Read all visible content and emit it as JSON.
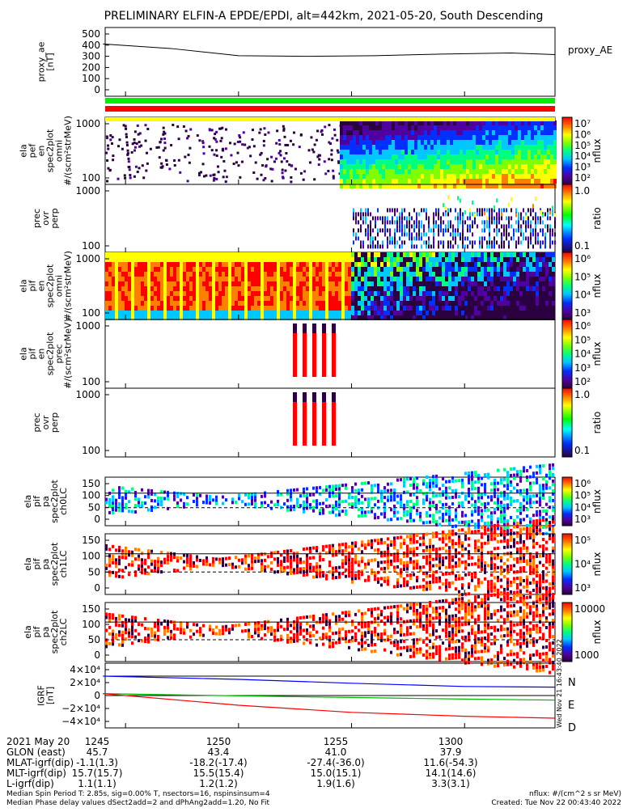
{
  "title": "PRELIMINARY ELFIN-A EPDE/EPDI, alt=442km, 2021-05-20, South Descending",
  "panels": [
    {
      "key": "ae",
      "ylabel_lines": [
        "proxy_ae",
        "[nT]"
      ],
      "yticks": [
        "500",
        "400",
        "300",
        "200",
        "100",
        "0"
      ],
      "right_label": "proxy_AE"
    },
    {
      "key": "epde_omni",
      "ylabel_lines": [
        "ela",
        "pef",
        "en",
        "spec2plot",
        "omni",
        "#/(scm²strMeV)"
      ],
      "yticks": [
        "1000",
        "100"
      ],
      "cb_ticks": [
        "10⁷",
        "10⁶",
        "10⁵",
        "10⁴",
        "10³",
        "10²"
      ],
      "cb_unit": "nflux"
    },
    {
      "key": "epde_ratio",
      "ylabel_lines": [
        "prec",
        "ovr",
        "perp"
      ],
      "yticks": [
        "1000",
        "100"
      ],
      "cb_ticks": [
        "1.0",
        "0.1"
      ],
      "cb_unit": "ratio"
    },
    {
      "key": "epdi_omni",
      "ylabel_lines": [
        "ela",
        "pif",
        "en",
        "spec2plot",
        "omni",
        "#/(scm²strMeV)"
      ],
      "yticks": [
        "1000",
        "100"
      ],
      "cb_ticks": [
        "10⁶",
        "10⁵",
        "10⁴",
        "10³"
      ],
      "cb_unit": "nflux"
    },
    {
      "key": "epdi_prec",
      "ylabel_lines": [
        "ela",
        "pif",
        "en",
        "spec2plot",
        "prec",
        "#/(scm²strMeV)"
      ],
      "yticks": [
        "1000",
        "100"
      ],
      "cb_ticks": [
        "10⁶",
        "10⁵",
        "10⁴",
        "10³",
        "10²"
      ],
      "cb_unit": "nflux"
    },
    {
      "key": "epdi_ratio",
      "ylabel_lines": [
        "prec",
        "ovr",
        "perp"
      ],
      "yticks": [
        "1000",
        "100"
      ],
      "cb_ticks": [
        "1.0",
        "0.1"
      ],
      "cb_unit": "ratio"
    },
    {
      "key": "pa0",
      "ylabel_lines": [
        "ela",
        "pif",
        "pa",
        "spec2plot",
        "ch0LC"
      ],
      "yticks": [
        "150",
        "100",
        "50",
        "0"
      ],
      "cb_ticks": [
        "10⁶",
        "10⁵",
        "10⁴",
        "10³"
      ],
      "cb_unit": "nflux"
    },
    {
      "key": "pa1",
      "ylabel_lines": [
        "ela",
        "pif",
        "pa",
        "spec2plot",
        "ch1LC"
      ],
      "yticks": [
        "150",
        "100",
        "50",
        "0"
      ],
      "cb_ticks": [
        "10⁵",
        "10⁴",
        "10³"
      ],
      "cb_unit": "nflux"
    },
    {
      "key": "pa2",
      "ylabel_lines": [
        "ela",
        "pif",
        "pa",
        "spec2plot",
        "ch2LC"
      ],
      "yticks": [
        "150",
        "100",
        "50",
        "0"
      ],
      "cb_ticks": [
        "10000",
        "1000"
      ],
      "cb_unit": "nflux"
    },
    {
      "key": "igrf",
      "ylabel_lines": [
        "IGRF",
        "[nT]"
      ],
      "yticks": [
        "4×10⁴",
        "2×10⁴",
        "0",
        "−2×10⁴",
        "−4×10⁴"
      ],
      "legend": [
        {
          "label": "N",
          "color": "#0000ff"
        },
        {
          "label": "E",
          "color": "#00bb00"
        },
        {
          "label": "D",
          "color": "#ff0000"
        }
      ]
    }
  ],
  "timestamp_vertical": "Wed Nov 21 16:43:40 2022",
  "footer_rows": [
    {
      "label": "2021 May 20",
      "values": [
        "1245",
        "1250",
        "1255",
        "1300"
      ]
    },
    {
      "label": "GLON (east)",
      "values": [
        "45.7",
        "43.4",
        "41.0",
        "37.9"
      ]
    },
    {
      "label": "MLAT-igrf(dip)",
      "values": [
        "-1.1(1.3)",
        "-18.2(-17.4)",
        "-27.4(-36.0)",
        "11.6(-54.3)"
      ]
    },
    {
      "label": "MLT-igrf(dip)",
      "values": [
        "15.7(15.7)",
        "15.5(15.4)",
        "15.0(15.1)",
        "14.1(14.6)"
      ]
    },
    {
      "label": "L-igrf(dip)",
      "values": [
        "1.1(1.1)",
        "1.2(1.2)",
        "1.9(1.6)",
        "3.3(3.1)"
      ]
    }
  ],
  "footer_notes": [
    "Median Spin Period T: 2.85s, sig=0.00% T, nsectors=16, nspinsinsum=4",
    "Median Phase delay values dSect2add=2 and dPhAng2add=1.20, No Fit"
  ],
  "footer_right": [
    "nflux: #/(cm^2 s sr MeV)",
    "Created: Tue Nov 22 00:43:40 2022"
  ],
  "chart_data": {
    "type": "line",
    "title": "PRELIMINARY ELFIN-A EPDE/EPDI, alt=442km, 2021-05-20, South Descending",
    "x_time_labels": [
      "1245",
      "1250",
      "1255",
      "1300"
    ],
    "proxy_ae": {
      "x": [
        "12:44",
        "12:47",
        "12:50",
        "12:53",
        "12:56",
        "12:59",
        "13:02",
        "13:04"
      ],
      "values": [
        410,
        370,
        305,
        300,
        305,
        320,
        330,
        315
      ],
      "ylim": [
        0,
        500
      ]
    },
    "igrf": {
      "ylim": [
        -40000,
        40000
      ],
      "series": [
        {
          "name": "N",
          "x": [
            "12:44",
            "12:50",
            "12:55",
            "13:00",
            "13:04"
          ],
          "values": [
            30000,
            25000,
            19000,
            14000,
            13000
          ]
        },
        {
          "name": "E",
          "x": [
            "12:44",
            "12:50",
            "12:55",
            "13:00",
            "13:04"
          ],
          "values": [
            3000,
            -500,
            -3000,
            -5500,
            -7000
          ]
        },
        {
          "name": "D",
          "x": [
            "12:44",
            "12:50",
            "12:55",
            "13:00",
            "13:04"
          ],
          "values": [
            3000,
            -15000,
            -26000,
            -32000,
            -35000
          ]
        }
      ]
    }
  },
  "colors": {
    "electron_bar_green": "#00ee00",
    "electron_bar_red": "#ff0000",
    "N": "#0000ff",
    "E": "#00bb00",
    "D": "#ff0000"
  }
}
